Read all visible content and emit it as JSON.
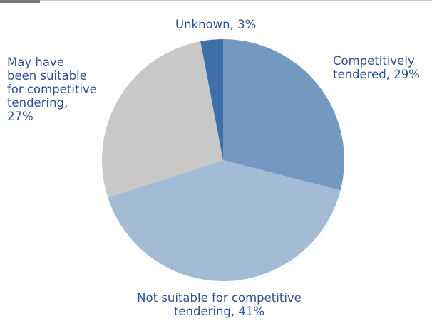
{
  "chart_data": {
    "type": "pie",
    "start_angle_deg": 0,
    "direction": "clockwise",
    "slices": [
      {
        "label_lines": [
          "Competitively",
          "tendered, 29%"
        ],
        "value": 29,
        "color": "#7399c0"
      },
      {
        "label_lines": [
          "Not suitable for competitive",
          "tendering, 41%"
        ],
        "value": 41,
        "color": "#a3bbd5"
      },
      {
        "label_lines": [
          "May have",
          "been suitable",
          "for competitive",
          "tendering,",
          "27%"
        ],
        "value": 27,
        "color": "#c8c8c8"
      },
      {
        "label_lines": [
          "Unknown, 3%"
        ],
        "value": 3,
        "color": "#3f6fa9"
      }
    ]
  }
}
